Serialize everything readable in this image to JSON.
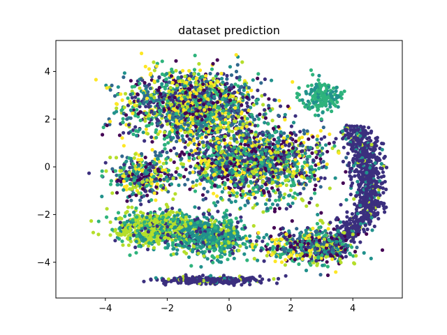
{
  "chart_data": {
    "type": "scatter",
    "title": "dataset prediction",
    "xlabel": "",
    "ylabel": "",
    "xlim": [
      -5.6,
      5.6
    ],
    "ylim": [
      -5.5,
      5.3
    ],
    "xticks": [
      -4,
      -2,
      0,
      2,
      4
    ],
    "yticks": [
      -4,
      -2,
      0,
      2,
      4
    ],
    "grid": false,
    "legend": "none",
    "palette": [
      "#3b2f7e",
      "#440154",
      "#21918c",
      "#2eb37c",
      "#b5de2b",
      "#fde725",
      "#31688e"
    ],
    "clusters": [
      {
        "label": "upper-left main mass",
        "center": [
          -1.2,
          2.6
        ],
        "spread": [
          1.8,
          1.2
        ],
        "n": 1600
      },
      {
        "label": "central mass",
        "center": [
          0.8,
          0.2
        ],
        "spread": [
          1.9,
          1.3
        ],
        "n": 1500
      },
      {
        "label": "left-middle band",
        "center": [
          -2.8,
          -0.4
        ],
        "spread": [
          0.9,
          0.7
        ],
        "n": 350
      },
      {
        "label": "lower-left lime lobe",
        "center": [
          -2.4,
          -2.6
        ],
        "spread": [
          1.0,
          0.6
        ],
        "n": 700
      },
      {
        "label": "lower-middle teal",
        "center": [
          -0.6,
          -2.9
        ],
        "spread": [
          1.0,
          0.7
        ],
        "n": 600
      },
      {
        "label": "right crescent",
        "center": [
          4.2,
          -1.0
        ],
        "spread": [
          0.6,
          2.2
        ],
        "n": 900
      },
      {
        "label": "bottom indigo strip",
        "center": [
          -0.5,
          -4.75
        ],
        "spread": [
          1.4,
          0.12
        ],
        "n": 320
      },
      {
        "label": "upper-right teal arm",
        "center": [
          3.0,
          2.9
        ],
        "spread": [
          0.5,
          0.5
        ],
        "n": 180
      },
      {
        "label": "lower-right band",
        "center": [
          2.6,
          -3.3
        ],
        "spread": [
          1.2,
          0.7
        ],
        "n": 500
      }
    ]
  }
}
